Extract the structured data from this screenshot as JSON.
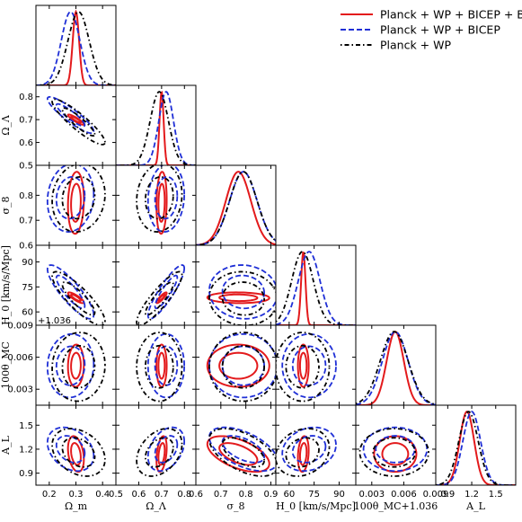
{
  "chart_data": {
    "type": "corner",
    "parameters": [
      {
        "symbol": "Ωm",
        "xlabel": "Ω_m",
        "ylabel": "Ω_m",
        "range": [
          0.15,
          0.45
        ],
        "xticks": [
          "0.2",
          "0.3",
          "0.4"
        ],
        "yticks": []
      },
      {
        "symbol": "ΩΛ",
        "xlabel": "Ω_Λ",
        "ylabel": "Ω_Λ",
        "range": [
          0.5,
          0.85
        ],
        "xticks": [
          "0.5",
          "0.6",
          "0.7",
          "0.8"
        ],
        "yticks": [
          "0.5",
          "0.6",
          "0.7",
          "0.8"
        ]
      },
      {
        "symbol": "σ8",
        "xlabel": "σ_8",
        "ylabel": "σ_8",
        "range": [
          0.6,
          0.92
        ],
        "xticks": [
          "0.6",
          "0.7",
          "0.8",
          "0.9"
        ],
        "yticks": [
          "0.6",
          "0.7",
          "0.8"
        ]
      },
      {
        "symbol": "H0",
        "xlabel": "H_0 [km/s/Mpc]",
        "ylabel": "H_0 [km/s/Mpc]",
        "range": [
          52,
          100
        ],
        "xticks": [
          "60",
          "75",
          "90"
        ],
        "yticks": [
          "60",
          "75",
          "90"
        ]
      },
      {
        "symbol": "100θMC",
        "xlabel": "100θ_MC+1.036",
        "ylabel": "100θ_MC",
        "range": [
          0.0015,
          0.009
        ],
        "xticks": [
          "0.003",
          "0.006",
          "0.009"
        ],
        "yticks": [
          "0.003",
          "0.006",
          "0.009"
        ],
        "offset": "+1.036"
      },
      {
        "symbol": "AL",
        "xlabel": "A_L",
        "ylabel": "A_L",
        "range": [
          0.75,
          1.75
        ],
        "xticks": [
          "0.9",
          "1.2",
          "1.5"
        ],
        "yticks": [
          "0.9",
          "1.2",
          "1.5"
        ]
      }
    ],
    "series": [
      {
        "name": "Planck + WP + BICEP + BAO",
        "color": "#e31a1c",
        "style": "solid",
        "mean": [
          0.3,
          0.7,
          0.77,
          68.5,
          0.0052,
          1.14
        ],
        "sd": [
          0.012,
          0.009,
          0.05,
          1.3,
          0.0008,
          0.09
        ]
      },
      {
        "name": "Planck + WP + BICEP",
        "color": "#1f2fd6",
        "style": "dashed",
        "mean": [
          0.28,
          0.72,
          0.79,
          72.0,
          0.0052,
          1.2
        ],
        "sd": [
          0.035,
          0.032,
          0.055,
          6.5,
          0.0012,
          0.11
        ]
      },
      {
        "name": "Planck + WP",
        "color": "#000000",
        "style": "dashdot",
        "mean": [
          0.31,
          0.69,
          0.79,
          68.0,
          0.0051,
          1.16
        ],
        "sd": [
          0.04,
          0.04,
          0.055,
          6.5,
          0.0013,
          0.12
        ]
      }
    ],
    "correlations": {
      "0-1": -0.9,
      "0-2": 0.1,
      "0-3": -0.85,
      "0-4": 0.05,
      "0-5": -0.3,
      "1-2": 0.1,
      "1-3": 0.88,
      "1-4": 0.0,
      "1-5": 0.35,
      "2-3": -0.05,
      "2-4": 0.0,
      "2-5": -0.55,
      "3-4": 0.0,
      "3-5": 0.2,
      "4-5": 0.0
    },
    "legend": "top-right"
  }
}
